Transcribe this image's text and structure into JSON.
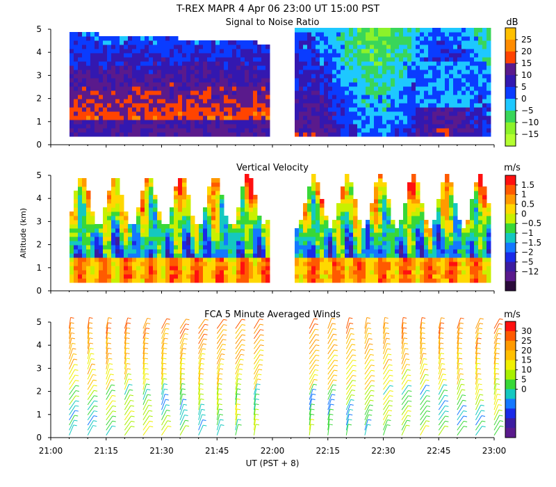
{
  "figure": {
    "title": "T-REX  MAPR  4 Apr 06  23:00 UT  15:00  PST",
    "ylabel": "Altitude (km)",
    "xlabel": "UT  (PST + 8)",
    "x_ticks": [
      "21:00",
      "21:15",
      "21:30",
      "21:45",
      "22:00",
      "22:15",
      "22:30",
      "22:45",
      "23:00"
    ],
    "y_ticks": [
      "0",
      "1",
      "2",
      "3",
      "4",
      "5"
    ]
  },
  "chart_data": [
    {
      "type": "heatmap",
      "title": "Signal to Noise Ratio",
      "unit": "dB",
      "xlim": [
        "21:00",
        "23:00"
      ],
      "ylim": [
        0,
        5
      ],
      "data_gap": [
        "21:59",
        "22:05"
      ],
      "colorbar": {
        "labels": [
          "25",
          "20",
          "15",
          "10",
          "5",
          "0",
          "−5",
          "−10",
          "−15"
        ],
        "colors": [
          "#ffc000",
          "#ff8c00",
          "#ff4400",
          "#5a1a8c",
          "#3318b0",
          "#0a3cff",
          "#1ec8ff",
          "#39d65a",
          "#8cf22a",
          "#b4ff30"
        ]
      }
    },
    {
      "type": "heatmap",
      "title": "Vertical Velocity",
      "unit": "m/s",
      "xlim": [
        "21:00",
        "23:00"
      ],
      "ylim": [
        0,
        5
      ],
      "data_gap": [
        "21:59",
        "22:05"
      ],
      "colorbar": {
        "labels": [
          "1.5",
          "1",
          "0.5",
          "0",
          "−0.5",
          "−1",
          "−1.5",
          "−2",
          "−5",
          "−12"
        ],
        "colors": [
          "#ff1010",
          "#ff5a00",
          "#ff9a00",
          "#ffd800",
          "#c8f000",
          "#38d838",
          "#14c8c0",
          "#1478ff",
          "#1a2ae8",
          "#3c1ca0",
          "#5a1a8c",
          "#2a0a3a"
        ]
      }
    },
    {
      "type": "scatter",
      "title": "FCA 5 Minute Averaged Winds",
      "unit": "m/s",
      "xlim": [
        "21:00",
        "23:00"
      ],
      "ylim": [
        0,
        5
      ],
      "profile_times": [
        "21:05",
        "21:10",
        "21:15",
        "21:20",
        "21:25",
        "21:30",
        "21:35",
        "21:40",
        "21:45",
        "21:50",
        "21:55",
        "22:10",
        "22:15",
        "22:20",
        "22:25",
        "22:30",
        "22:35",
        "22:40",
        "22:45",
        "22:50",
        "22:55",
        "23:00"
      ],
      "colorbar": {
        "labels": [
          "30",
          "25",
          "20",
          "15",
          "10",
          "5",
          "0"
        ],
        "colors": [
          "#ff1010",
          "#ff5a00",
          "#ff9a00",
          "#ffc000",
          "#f0f000",
          "#a8f000",
          "#38d838",
          "#14c8c0",
          "#1478ff",
          "#1a2ae8",
          "#3c1ca0",
          "#5a1a8c"
        ]
      }
    }
  ]
}
